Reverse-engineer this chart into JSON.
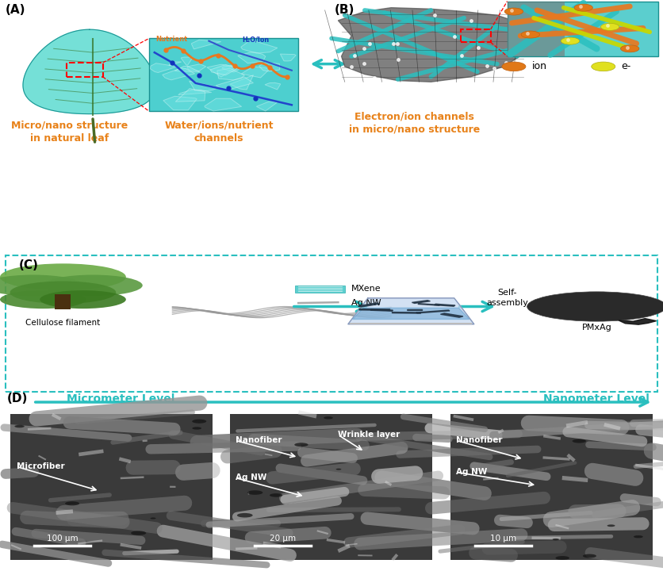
{
  "panel_A_label": "(A)",
  "panel_B_label": "(B)",
  "panel_C_label": "(C)",
  "panel_D_label": "(D)",
  "text_A1": "Micro/nano structure\nin natural leaf",
  "text_A2": "Water/ions/nutrient\nchannels",
  "text_B1": "Electron/ion channels\nin micro/nano structure",
  "text_ion": "ion",
  "text_electron": "e-",
  "text_cellulose": "Cellulose filament",
  "text_mxene": "MXene",
  "text_agnw": "Ag NW",
  "text_selfassembly": "Self-\nassembly",
  "text_pmxag": "PMxAg",
  "text_D_micro": "Micrometer Level",
  "text_D_nano": "Nanometer Level",
  "text_microfiber": "Microfiber",
  "text_100um": "100 μm",
  "text_nanofiber1": "Nanofiber",
  "text_agnw1": "Ag NW",
  "text_wrinkle": "Wrinkle layer",
  "text_20um": "20 μm",
  "text_nanofiber2": "Nanofiber",
  "text_agnw2": "Ag NW",
  "text_10um": "10 μm",
  "nutrient_text": "Nutrient",
  "water_text": "H₂O/Ion",
  "orange_color": "#E8821A",
  "teal_color": "#2ABFBF",
  "teal_dark": "#1a9090",
  "leaf_color": "#5DDBD0",
  "leaf_vein": "#3a7a30",
  "leaf_stem": "#4a6a25",
  "cell_bg": "#4DCFCF",
  "cell_walls": "#7EEAEA",
  "orange_channel": "#E87820",
  "blue_channel": "#2255CC",
  "mesh_color": "#555555",
  "sem_bg": "#404040",
  "sem_fiber": "#888888",
  "sem_bright": "#CCCCCC",
  "white": "#FFFFFF",
  "tree_green": "#5a9940",
  "tree_trunk": "#4a3010",
  "flask_color": "#BDD8F0",
  "paper_color": "#333333"
}
